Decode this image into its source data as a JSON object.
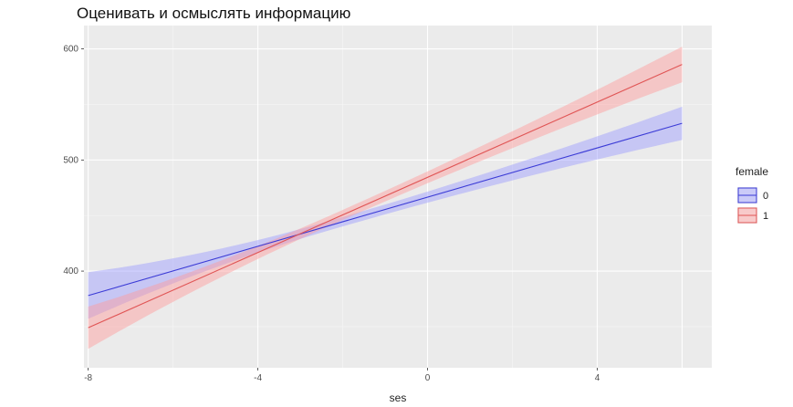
{
  "chart_data": {
    "type": "line",
    "title": "Оценивать и осмыслять информацию",
    "xlabel": "ses",
    "ylabel": "",
    "xlim": [
      -8.1,
      6.7
    ],
    "ylim": [
      313,
      621
    ],
    "x_ticks": [
      -8,
      -4,
      0,
      4
    ],
    "y_ticks": [
      400,
      500,
      600
    ],
    "grid": true,
    "legend": {
      "title": "female",
      "position": "right"
    },
    "series": [
      {
        "name": "0",
        "color": "#3b3bd6",
        "fill": "#9999ff",
        "x": [
          -8,
          6
        ],
        "y": [
          378,
          533
        ],
        "lower": [
          357,
          518
        ],
        "upper": [
          399,
          548
        ]
      },
      {
        "name": "1",
        "color": "#e05555",
        "fill": "#ff9a9a",
        "x": [
          -8,
          6
        ],
        "y": [
          349,
          586
        ],
        "lower": [
          330,
          570
        ],
        "upper": [
          368,
          602
        ]
      }
    ]
  }
}
